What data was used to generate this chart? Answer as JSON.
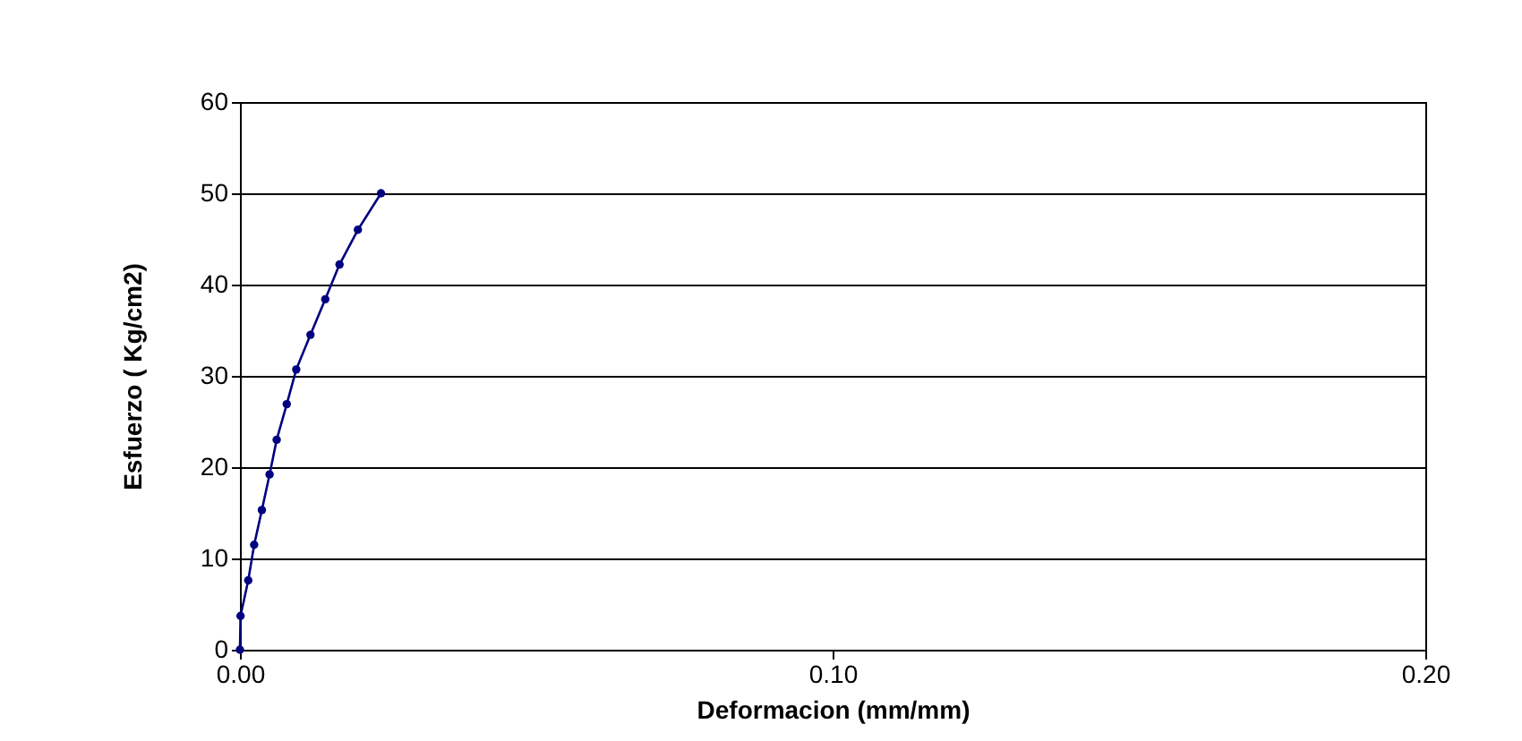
{
  "chart_data": {
    "type": "line",
    "xlabel": "Deformacion (mm/mm)",
    "ylabel": "Esfuerzo ( Kg/cm2)",
    "x": [
      0,
      0.0001,
      0.0014,
      0.0024,
      0.0037,
      0.005,
      0.0062,
      0.0079,
      0.0095,
      0.0119,
      0.0144,
      0.0168,
      0.0199,
      0.0238
    ],
    "series": [
      {
        "color": "#000080",
        "values": [
          0,
          3.7,
          7.6,
          11.5,
          15.3,
          19.2,
          23.0,
          26.9,
          30.7,
          34.5,
          38.4,
          42.2,
          46.0,
          50
        ]
      }
    ],
    "xlim": [
      0,
      0.2
    ],
    "xticks": [
      {
        "value": 0,
        "label": "0.00"
      },
      {
        "value": 0.1,
        "label": "0.10"
      },
      {
        "value": 0.2,
        "label": "0.20"
      }
    ],
    "ylim": [
      0,
      60
    ],
    "yticks": [
      0,
      10,
      20,
      30,
      40,
      50,
      60
    ],
    "grid": "y",
    "marker": "circle",
    "line_style": "solid"
  }
}
